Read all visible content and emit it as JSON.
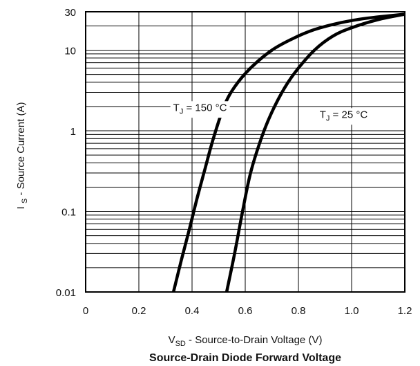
{
  "chart_data": {
    "type": "line",
    "title": "Source-Drain Diode Forward Voltage",
    "xlabel": {
      "main": "V",
      "sub": "SD",
      "rest": " - Source-to-Drain Voltage (V)"
    },
    "ylabel": {
      "main": "I ",
      "sub": "S",
      "rest": " - Source Current (A)"
    },
    "xlim": [
      0,
      1.2
    ],
    "ylim": [
      0.01,
      30
    ],
    "yscale": "log",
    "grid": true,
    "x_ticks": [
      "0",
      "0.2",
      "0.4",
      "0.6",
      "0.8",
      "1.0",
      "1.2"
    ],
    "y_ticks": [
      "0.01",
      "0.1",
      "1",
      "10",
      "30"
    ],
    "series": [
      {
        "name": "TJ = 150 °C",
        "x": [
          0.33,
          0.36,
          0.39,
          0.42,
          0.45,
          0.48,
          0.52,
          0.56,
          0.62,
          0.7,
          0.78,
          0.86,
          0.96,
          1.06,
          1.2
        ],
        "y": [
          0.01,
          0.025,
          0.06,
          0.15,
          0.35,
          0.8,
          2.0,
          3.5,
          6.0,
          10.0,
          14.0,
          18.0,
          22.0,
          25.0,
          28.0
        ]
      },
      {
        "name": "TJ = 25 °C",
        "x": [
          0.53,
          0.56,
          0.59,
          0.62,
          0.66,
          0.7,
          0.75,
          0.8,
          0.86,
          0.93,
          1.0,
          1.1,
          1.2
        ],
        "y": [
          0.01,
          0.03,
          0.1,
          0.3,
          0.8,
          1.7,
          3.5,
          6.0,
          10.0,
          15.0,
          19.0,
          24.0,
          28.0
        ]
      }
    ],
    "annotations": [
      {
        "main": "T",
        "sub": "J",
        "rest": " = 150 °C",
        "x": 0.43,
        "y": 1.95
      },
      {
        "main": "T",
        "sub": "J",
        "rest": " = 25 °C",
        "x": 0.97,
        "y": 1.6
      }
    ]
  }
}
